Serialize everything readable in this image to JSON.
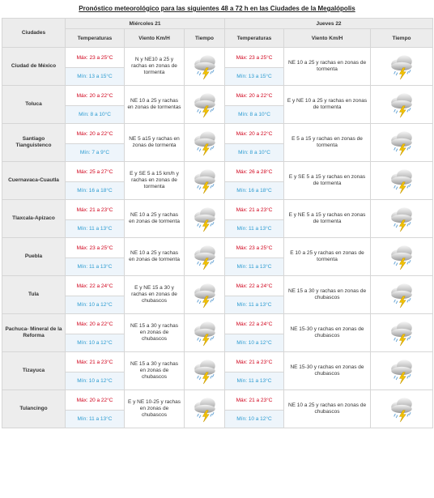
{
  "title": "Pronóstico meteorológico para las siguientes 48 a 72 h en las Ciudades de la Megalópolis",
  "header": {
    "cities_label": "Ciudades",
    "day1": "Miércoles 21",
    "day2": "Jueves 22",
    "col_temp": "Temperaturas",
    "col_wind": "Viento Km/H",
    "col_weather": "Tiempo"
  },
  "icons": {
    "weather": "storm-cloud-icon"
  },
  "colors": {
    "max": "#d0021b",
    "min": "#2b9bd1"
  },
  "rows": [
    {
      "city": "Ciudad de México",
      "d1": {
        "max": "Máx: 23 a 25°C",
        "min": "Mín: 13 a 15°C",
        "wind": "N y NE10 a 25 y rachas en zonas de tormenta"
      },
      "d2": {
        "max": "Máx: 23 a 25°C",
        "min": "Mín: 13 a 15°C",
        "wind": "NE 10 a 25 y rachas en zonas de tormenta"
      }
    },
    {
      "city": "Toluca",
      "d1": {
        "max": "Máx: 20 a 22°C",
        "min": "Mín: 8 a 10°C",
        "wind": "NE 10 a 25 y rachas en zonas de tormentas"
      },
      "d2": {
        "max": "Máx: 20 a 22°C",
        "min": "Mín: 8 a 10°C",
        "wind": "E y NE 10 a 25 y rachas en zonas de tormenta"
      }
    },
    {
      "city": "Santiago Tianguistenco",
      "d1": {
        "max": "Máx: 20 a 22°C",
        "min": "Mín: 7 a 9°C",
        "wind": "NE 5 a15 y rachas en zonas de tormenta"
      },
      "d2": {
        "max": "Máx: 20 a 22°C",
        "min": "Mín: 8 a 10°C",
        "wind": "E 5 a 15 y rachas en zonas de tormenta"
      }
    },
    {
      "city": "Cuernavaca-Cuautla",
      "d1": {
        "max": "Máx: 25 a 27°C",
        "min": "Mín: 16 a 18°C",
        "wind": "E y SE 5 a 15 km/h y rachas en zonas de tormenta"
      },
      "d2": {
        "max": "Máx: 26 a 28°C",
        "min": "Mín: 16 a 18°C",
        "wind": "E y SE 5 a 15 y rachas en zonas de tormenta"
      }
    },
    {
      "city": "Tlaxcala-Apizaco",
      "d1": {
        "max": "Máx: 21 a 23°C",
        "min": "Mín: 11 a 13°C",
        "wind": "NE 10 a 25 y rachas en zonas de tormenta"
      },
      "d2": {
        "max": "Máx: 21 a 23°C",
        "min": "Mín: 11 a 13°C",
        "wind": "E y NE 5 a 15 y rachas en zonas de tormenta"
      }
    },
    {
      "city": "Puebla",
      "d1": {
        "max": "Máx: 23 a 25°C",
        "min": "Mín: 11 a 13°C",
        "wind": "NE 10 a 25 y rachas en zonas de tormenta"
      },
      "d2": {
        "max": "Máx: 23 a 25°C",
        "min": "Mín: 11 a 13°C",
        "wind": "E 10 a 25 y rachas en zonas de tormenta"
      }
    },
    {
      "city": "Tula",
      "d1": {
        "max": "Máx: 22 a 24°C",
        "min": "Mín: 10 a 12°C",
        "wind": "E y NE 15 a 30 y rachas en zonas de chubascos"
      },
      "d2": {
        "max": "Máx: 22 a 24°C",
        "min": "Mín: 11 a 13°C",
        "wind": "NE 15 a 30 y rachas en zonas de chubascos"
      }
    },
    {
      "city": "Pachuca- Mineral de la Reforma",
      "d1": {
        "max": "Máx: 20 a 22°C",
        "min": "Mín: 10 a 12°C",
        "wind": "NE 15 a 30 y rachas en zonas de chubascos"
      },
      "d2": {
        "max": "Máx: 22 a 24°C",
        "min": "Mín: 10 a 12°C",
        "wind": "NE 15-30 y rachas en zonas de chubascos"
      }
    },
    {
      "city": "Tizayuca",
      "d1": {
        "max": "Máx: 21 a 23°C",
        "min": "Mín: 10 a 12°C",
        "wind": "NE 15 a 30 y rachas en zonas de chubascos"
      },
      "d2": {
        "max": "Máx: 21 a 23°C",
        "min": "Mín: 11 a 13°C",
        "wind": "NE 15-30 y rachas en zonas de chubascos"
      }
    },
    {
      "city": "Tulancingo",
      "d1": {
        "max": "Máx: 20 a 22°C",
        "min": "Mín: 11 a 13°C",
        "wind": "E y NE 10-25 y rachas en zonas de chubascos"
      },
      "d2": {
        "max": "Máx: 21 a 23°C",
        "min": "Mín: 10 a 12°C",
        "wind": "NE 10 a 25 y rachas en zonas de chubascos"
      }
    }
  ]
}
